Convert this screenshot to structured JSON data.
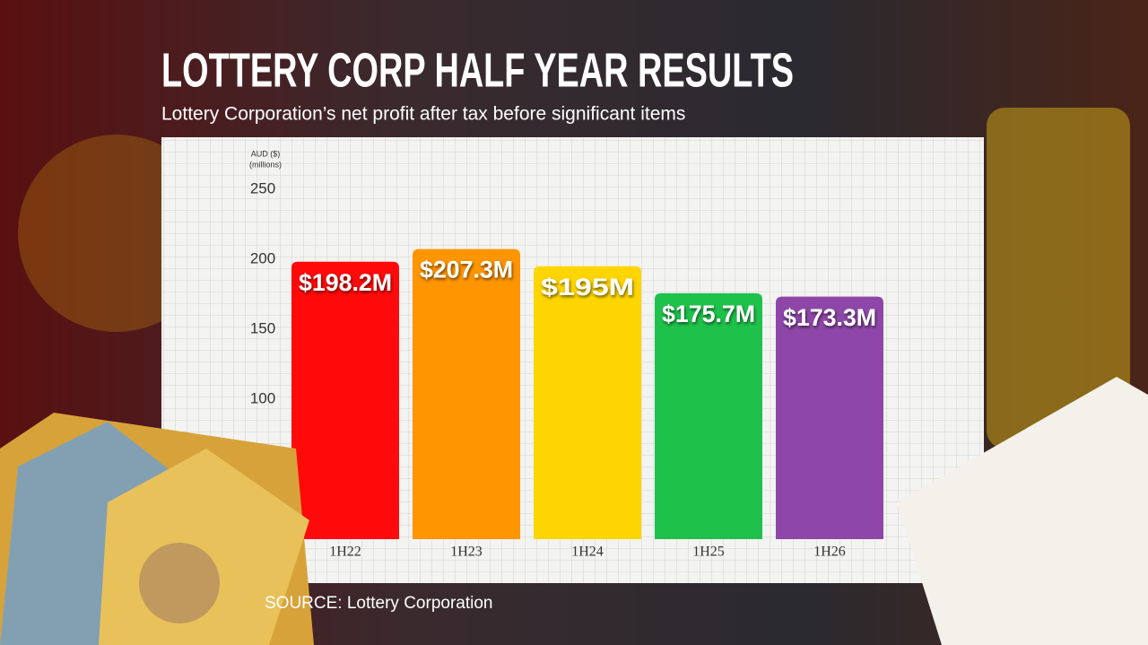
{
  "chart_data": {
    "type": "bar",
    "title": "LOTTERY CORP HALF YEAR RESULTS",
    "subtitle": "Lottery Corporation’s net profit after tax before significant items",
    "y_label": "AUD ($)",
    "y_unit": "(millions)",
    "source": "SOURCE: Lottery Corporation",
    "categories": [
      "1H22",
      "1H23",
      "1H24",
      "1H25",
      "1H26"
    ],
    "values": [
      198.2,
      207.3,
      195,
      175.7,
      173.3
    ],
    "value_labels": [
      "$198.2M",
      "$207.3M",
      "$195M",
      "$175.7M",
      "$173.3M"
    ],
    "colors": [
      "#ff0a0a",
      "#ff9500",
      "#ffd500",
      "#1ec24b",
      "#8e47a8"
    ],
    "ylim": [
      0,
      250
    ],
    "yticks": [
      100,
      150,
      200,
      250
    ],
    "grid": true
  }
}
